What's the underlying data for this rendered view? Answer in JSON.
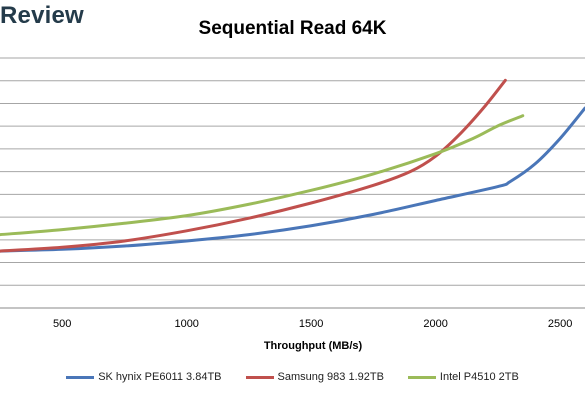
{
  "brand": {
    "logo_text": "Review"
  },
  "chart_data": {
    "type": "line",
    "title": "Sequential Read 64K",
    "xlabel": "Throughput (MB/s)",
    "ylabel": "",
    "xlim": [
      250,
      2600
    ],
    "x_ticks": [
      500,
      1000,
      1500,
      2000,
      2500
    ],
    "y_gridlines": 12,
    "grid": true,
    "legend_position": "bottom",
    "series": [
      {
        "name": "SK hynix PE6011 3.84TB",
        "color": "#4a76b8",
        "points": [
          [
            250,
            0.225
          ],
          [
            500,
            0.232
          ],
          [
            750,
            0.245
          ],
          [
            1000,
            0.265
          ],
          [
            1250,
            0.29
          ],
          [
            1500,
            0.325
          ],
          [
            1750,
            0.37
          ],
          [
            2000,
            0.425
          ],
          [
            2250,
            0.48
          ],
          [
            2300,
            0.5
          ],
          [
            2400,
            0.57
          ],
          [
            2500,
            0.67
          ],
          [
            2600,
            0.79
          ]
        ]
      },
      {
        "name": "Samsung 983 1.92TB",
        "color": "#c0504d",
        "points": [
          [
            250,
            0.225
          ],
          [
            500,
            0.24
          ],
          [
            750,
            0.265
          ],
          [
            1000,
            0.305
          ],
          [
            1250,
            0.355
          ],
          [
            1500,
            0.415
          ],
          [
            1750,
            0.485
          ],
          [
            1900,
            0.54
          ],
          [
            2000,
            0.6
          ],
          [
            2100,
            0.69
          ],
          [
            2200,
            0.8
          ],
          [
            2280,
            0.9
          ]
        ]
      },
      {
        "name": "Intel P4510 2TB",
        "color": "#9bbb59",
        "points": [
          [
            250,
            0.29
          ],
          [
            500,
            0.31
          ],
          [
            750,
            0.335
          ],
          [
            1000,
            0.365
          ],
          [
            1250,
            0.41
          ],
          [
            1500,
            0.465
          ],
          [
            1750,
            0.53
          ],
          [
            2000,
            0.61
          ],
          [
            2150,
            0.67
          ],
          [
            2250,
            0.72
          ],
          [
            2350,
            0.76
          ]
        ]
      }
    ]
  }
}
